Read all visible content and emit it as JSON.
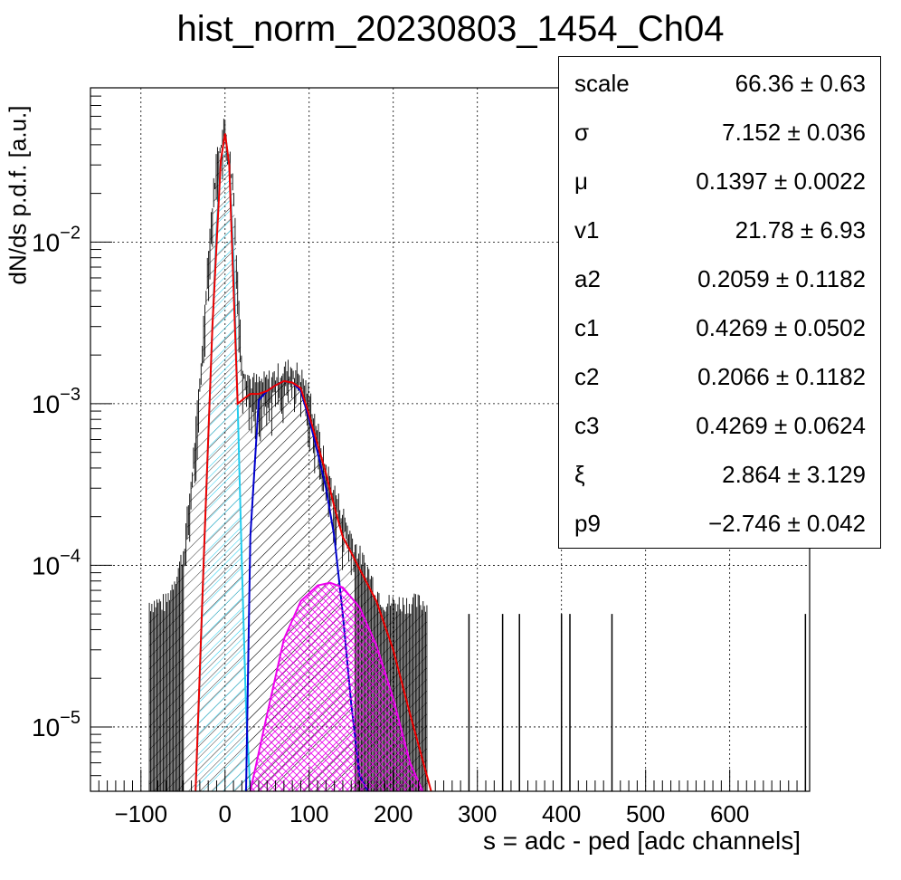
{
  "title": "hist_norm_20230803_1454_Ch04",
  "chart_data": {
    "type": "histogram",
    "title": "hist_norm_20230803_1454_Ch04",
    "xlabel": "s = adc - ped [adc channels]",
    "ylabel": "dN/ds p.d.f. [a.u.]",
    "xlim": [
      -160,
      695
    ],
    "ylim": [
      4e-06,
      0.09
    ],
    "yscale": "log",
    "grid": true,
    "x_ticks": [
      -100,
      0,
      100,
      200,
      300,
      400,
      500,
      600
    ],
    "x_tick_labels": [
      "−100",
      "0",
      "100",
      "200",
      "300",
      "400",
      "500",
      "600"
    ],
    "y_ticks": [
      1e-05,
      0.0001,
      0.001,
      0.01
    ],
    "y_tick_labels": [
      {
        "base": "10",
        "exp": "−5"
      },
      {
        "base": "10",
        "exp": "−4"
      },
      {
        "base": "10",
        "exp": "−3"
      },
      {
        "base": "10",
        "exp": "−2"
      }
    ],
    "series": [
      {
        "role": "data",
        "color": "#000000",
        "x": [
          -90,
          -70,
          -50,
          -40,
          -30,
          -20,
          -10,
          0,
          10,
          20,
          30,
          40,
          50,
          60,
          70,
          80,
          90,
          100,
          110,
          120,
          130,
          140,
          150,
          160,
          170,
          180,
          190,
          200,
          210,
          220,
          230,
          240
        ],
        "y": [
          5e-05,
          5e-05,
          0.0001,
          0.0003,
          0.0012,
          0.008,
          0.03,
          0.048,
          0.02,
          0.0016,
          0.0012,
          0.00115,
          0.0012,
          0.0013,
          0.0014,
          0.00145,
          0.0013,
          0.001,
          0.0006,
          0.00035,
          0.00025,
          0.00018,
          0.00013,
          0.0001,
          8e-05,
          6e-05,
          5e-05,
          5e-05,
          5e-05,
          5e-05,
          5e-05,
          5e-05
        ],
        "isolated_x": [
          290,
          330,
          350,
          400,
          410,
          460,
          690
        ]
      },
      {
        "role": "pedestal",
        "color": "#22ccee",
        "fill": "hatch",
        "x": [
          -35,
          -30,
          -25,
          -20,
          -15,
          -10,
          -5,
          0,
          5,
          10,
          15,
          20,
          25,
          30
        ],
        "y": [
          4e-06,
          2e-05,
          0.00012,
          0.0006,
          0.003,
          0.012,
          0.032,
          0.047,
          0.03,
          0.008,
          0.001,
          0.0001,
          1.3e-05,
          4e-06
        ]
      },
      {
        "role": "single",
        "color": "#0000cc",
        "fill": "hatch",
        "x": [
          25,
          30,
          40,
          50,
          60,
          70,
          80,
          90,
          100,
          110,
          120,
          130,
          140,
          150,
          160,
          170
        ],
        "y": [
          4e-06,
          0.00015,
          0.00105,
          0.0012,
          0.0013,
          0.00138,
          0.00135,
          0.0012,
          0.0008,
          0.0005,
          0.0003,
          0.00015,
          5e-05,
          1.4e-05,
          5e-06,
          4e-06
        ]
      },
      {
        "role": "double",
        "color": "#ee00ee",
        "fill": "crosshatch",
        "x": [
          30,
          50,
          70,
          90,
          110,
          125,
          140,
          160,
          180,
          200,
          220,
          235
        ],
        "y": [
          4e-06,
          1.2e-05,
          3.5e-05,
          6e-05,
          7.5e-05,
          7.8e-05,
          7.3e-05,
          5.5e-05,
          3.2e-05,
          1.5e-05,
          6e-06,
          4e-06
        ]
      },
      {
        "role": "total",
        "color": "#ee0000",
        "x": [
          -35,
          -25,
          -15,
          -5,
          0,
          5,
          15,
          25,
          30,
          40,
          50,
          60,
          70,
          80,
          90,
          100,
          110,
          120,
          130,
          140,
          150,
          160,
          180,
          200,
          220,
          240,
          245
        ],
        "y": [
          4e-06,
          0.00012,
          0.003,
          0.032,
          0.047,
          0.03,
          0.001,
          0.0011,
          0.00115,
          0.00115,
          0.0012,
          0.0013,
          0.00138,
          0.00135,
          0.00125,
          0.00085,
          0.00056,
          0.00037,
          0.00023,
          0.00015,
          0.00012,
          9.5e-05,
          6e-05,
          3e-05,
          1.2e-05,
          5e-06,
          4e-06
        ]
      }
    ]
  },
  "stats": {
    "rows": [
      {
        "key": "scale",
        "value": "66.36 ± 0.63"
      },
      {
        "key": "σ",
        "value": "7.152 ± 0.036"
      },
      {
        "key": "μ",
        "value": "0.1397 ± 0.0022"
      },
      {
        "key": "v1",
        "value": "21.78 ± 6.93"
      },
      {
        "key": "a2",
        "value": "0.2059 ± 0.1182"
      },
      {
        "key": "c1",
        "value": "0.4269 ± 0.0502"
      },
      {
        "key": "c2",
        "value": "0.2066 ± 0.1182"
      },
      {
        "key": "c3",
        "value": "0.4269 ± 0.0624"
      },
      {
        "key": "ξ",
        "value": "2.864 ± 3.129"
      },
      {
        "key": "p9",
        "value": "−2.746 ± 0.042"
      }
    ]
  }
}
